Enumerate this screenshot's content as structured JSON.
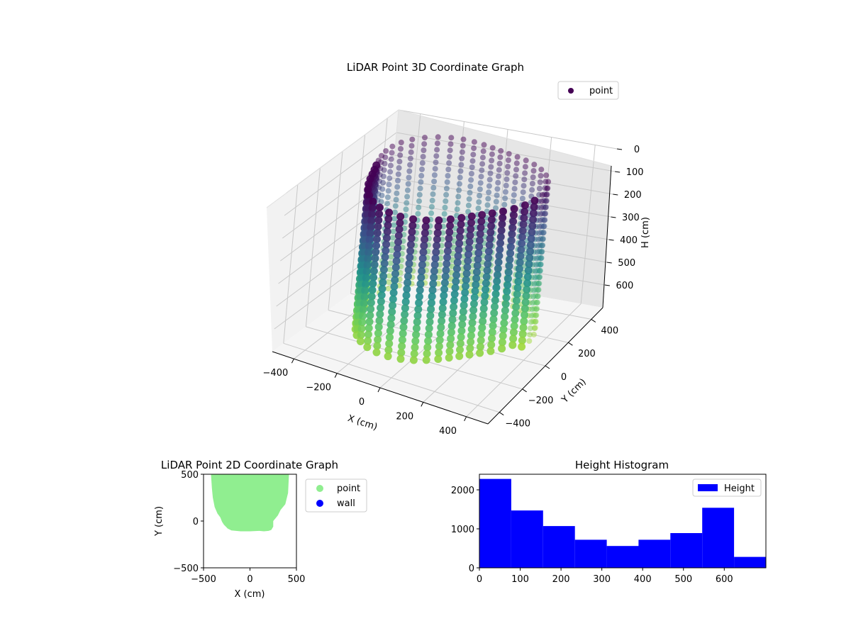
{
  "chart_data": [
    {
      "type": "scatter",
      "projection": "3d",
      "title": "LiDAR Point 3D Coordinate Graph",
      "xlabel": "X (cm)",
      "ylabel": "Y (cm)",
      "zlabel": "H (cm)",
      "xlim": [
        -500,
        500
      ],
      "ylim": [
        -500,
        500
      ],
      "zlim": [
        0,
        700
      ],
      "zaxis_inverted": true,
      "x_ticks": [
        "−400",
        "−200",
        "0",
        "200",
        "400"
      ],
      "y_ticks": [
        "−400",
        "−200",
        "0",
        "200",
        "400"
      ],
      "z_ticks": [
        "0",
        "100",
        "200",
        "300",
        "400",
        "500",
        "600"
      ],
      "colormap": "viridis",
      "grid": true,
      "legend": {
        "position": "top-right",
        "entries": [
          {
            "label": "point",
            "color": "#440154"
          }
        ]
      },
      "series": [
        {
          "name": "point",
          "shape": "partial cylindrical wall of points around the origin",
          "radius_range": [
            330,
            420
          ],
          "height_range": [
            0,
            700
          ]
        }
      ]
    },
    {
      "type": "scatter",
      "title": "LiDAR Point 2D Coordinate Graph",
      "xlabel": "X (cm)",
      "ylabel": "Y (cm)",
      "xlim": [
        -500,
        500
      ],
      "ylim": [
        -500,
        500
      ],
      "x_ticks": [
        "−500",
        "0",
        "500"
      ],
      "y_ticks": [
        "−500",
        "0",
        "500"
      ],
      "grid": false,
      "legend": {
        "position": "outside-right",
        "entries": [
          {
            "label": "point",
            "color": "#90ee90"
          },
          {
            "label": "wall",
            "color": "#0000ff"
          }
        ]
      },
      "series": [
        {
          "name": "point",
          "color": "#90ee90",
          "region_outline": [
            [
              -420,
              500
            ],
            [
              -410,
              350
            ],
            [
              -400,
              250
            ],
            [
              -380,
              150
            ],
            [
              -350,
              80
            ],
            [
              -320,
              40
            ],
            [
              -300,
              -10
            ],
            [
              -280,
              -40
            ],
            [
              -260,
              -60
            ],
            [
              -240,
              -80
            ],
            [
              -200,
              -100
            ],
            [
              -150,
              -105
            ],
            [
              -100,
              -110
            ],
            [
              0,
              -110
            ],
            [
              100,
              -105
            ],
            [
              150,
              -110
            ],
            [
              200,
              -105
            ],
            [
              230,
              -95
            ],
            [
              250,
              -60
            ],
            [
              250,
              0
            ],
            [
              300,
              60
            ],
            [
              330,
              120
            ],
            [
              380,
              180
            ],
            [
              410,
              300
            ],
            [
              420,
              500
            ]
          ]
        },
        {
          "name": "wall",
          "color": "#0000ff",
          "values": []
        }
      ]
    },
    {
      "type": "bar",
      "subtype": "histogram",
      "title": "Height Histogram",
      "xlabel": "",
      "ylabel": "",
      "color": "#0000ff",
      "legend": {
        "position": "top-right",
        "entries": [
          {
            "label": "Height",
            "color": "#0000ff"
          }
        ]
      },
      "bin_edges": [
        0,
        78,
        156,
        234,
        312,
        390,
        468,
        546,
        624,
        702
      ],
      "values": [
        2280,
        1470,
        1070,
        720,
        560,
        720,
        890,
        1540,
        280
      ],
      "xlim": [
        0,
        702
      ],
      "ylim": [
        0,
        2400
      ],
      "x_ticks": [
        0,
        100,
        200,
        300,
        400,
        500,
        600
      ],
      "y_ticks": [
        0,
        1000,
        2000
      ]
    }
  ]
}
